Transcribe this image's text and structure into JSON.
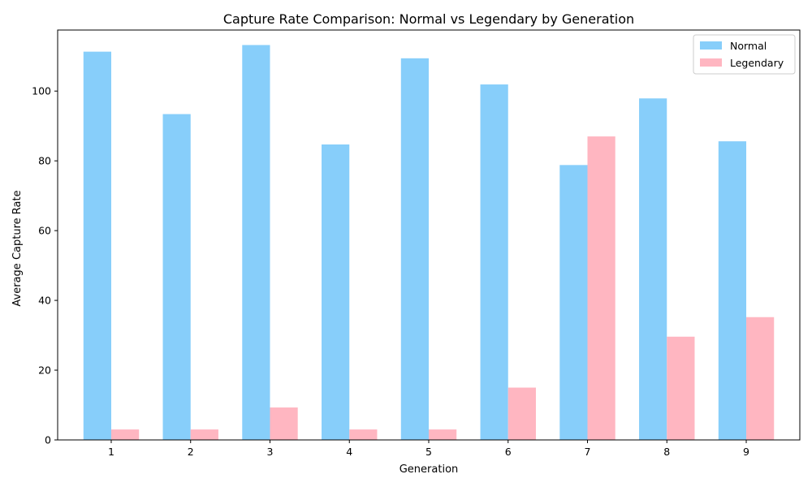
{
  "chart_data": {
    "type": "bar",
    "title": "Capture Rate Comparison: Normal vs Legendary by Generation",
    "xlabel": "Generation",
    "ylabel": "Average Capture Rate",
    "categories": [
      "1",
      "2",
      "3",
      "4",
      "5",
      "6",
      "7",
      "8",
      "9"
    ],
    "series": [
      {
        "name": "Normal",
        "color": "#87CEFA",
        "values": [
          111.3,
          93.4,
          113.2,
          84.7,
          109.4,
          101.9,
          78.8,
          97.9,
          85.6
        ]
      },
      {
        "name": "Legendary",
        "color": "#FFB6C1",
        "values": [
          3.0,
          3.0,
          9.3,
          3.0,
          3.0,
          15.0,
          87.0,
          29.6,
          35.2
        ]
      }
    ],
    "yticks": [
      0,
      20,
      40,
      60,
      80,
      100
    ],
    "ylim": [
      0,
      117.5
    ],
    "legend_position": "top-right",
    "grid": false
  }
}
